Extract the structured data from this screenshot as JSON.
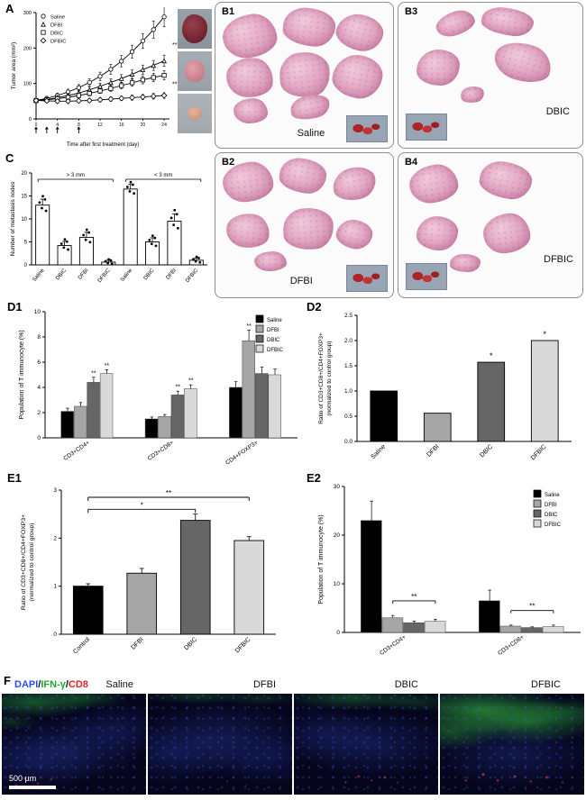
{
  "figure": {
    "panels": {
      "a": "A",
      "b1": "B1",
      "b2": "B2",
      "b3": "B3",
      "b4": "B4",
      "c": "C",
      "d1": "D1",
      "d2": "D2",
      "e1": "E1",
      "e2": "E2",
      "f": "F"
    }
  },
  "groups": [
    "Saline",
    "DFBI",
    "DBIC",
    "DFBIC"
  ],
  "group_colors": {
    "Saline": "#000000",
    "DFBI": "#a6a6a6",
    "DBIC": "#666666",
    "DFBIC": "#d9d9d9"
  },
  "panel_b": {
    "b1": {
      "caption": "Saline"
    },
    "b2": {
      "caption": "DFBI"
    },
    "b3": {
      "caption": "DBIC"
    },
    "b4": {
      "caption": "DFBIC"
    }
  },
  "panel_f": {
    "stain_parts": [
      {
        "text": "DAPI",
        "color": "#2b4bff"
      },
      {
        "text": "/",
        "color": "#111111"
      },
      {
        "text": "IFN-γ",
        "color": "#1ea832"
      },
      {
        "text": "/",
        "color": "#111111"
      },
      {
        "text": "CD8",
        "color": "#e02424"
      }
    ],
    "image_labels": [
      "Saline",
      "DFBI",
      "DBIC",
      "DFBIC"
    ],
    "scale_bar": "500 µm"
  },
  "chart_data": [
    {
      "id": "A",
      "type": "line",
      "ylabel": "Tumor area (mm²)",
      "xlabel": "Time after first treatment (day)",
      "xlim": [
        0,
        25
      ],
      "ylim": [
        0,
        300
      ],
      "xticks": [
        0,
        4,
        8,
        12,
        16,
        20,
        24
      ],
      "yticks": [
        0,
        100,
        200,
        300
      ],
      "x": [
        0,
        2,
        4,
        6,
        8,
        10,
        12,
        14,
        16,
        18,
        20,
        22,
        24
      ],
      "series": [
        {
          "name": "Saline",
          "marker": "circle",
          "values": [
            52,
            58,
            66,
            76,
            88,
            103,
            120,
            140,
            163,
            190,
            220,
            252,
            288
          ],
          "errors": [
            6,
            6,
            7,
            8,
            9,
            10,
            12,
            14,
            16,
            18,
            21,
            24,
            28
          ]
        },
        {
          "name": "DFBI",
          "marker": "triangle",
          "values": [
            52,
            55,
            60,
            66,
            73,
            82,
            92,
            103,
            114,
            126,
            139,
            151,
            164
          ],
          "errors": [
            5,
            5,
            6,
            6,
            7,
            8,
            9,
            10,
            11,
            12,
            13,
            14,
            16
          ]
        },
        {
          "name": "DBIC",
          "marker": "square",
          "values": [
            52,
            54,
            57,
            61,
            66,
            72,
            79,
            86,
            94,
            102,
            110,
            117,
            123
          ],
          "errors": [
            5,
            5,
            5,
            6,
            6,
            7,
            7,
            8,
            9,
            10,
            11,
            12,
            13
          ]
        },
        {
          "name": "DFBIC",
          "marker": "diamond",
          "values": [
            52,
            51,
            50,
            50,
            51,
            52,
            54,
            56,
            58,
            60,
            62,
            64,
            66
          ],
          "errors": [
            4,
            4,
            4,
            5,
            5,
            5,
            6,
            6,
            6,
            7,
            7,
            8,
            8
          ]
        }
      ],
      "treatment_days": [
        0,
        2,
        4,
        8
      ],
      "sig": [
        {
          "y": 208,
          "text": "**"
        },
        {
          "y": 98,
          "text": "**"
        }
      ],
      "legend_position": "top-left",
      "grid": false
    },
    {
      "id": "C",
      "type": "bar",
      "ylabel": "Number of metastasis nodes",
      "ylim": [
        0,
        20
      ],
      "yticks": [
        0,
        5,
        10,
        15,
        20
      ],
      "categories": [
        "Saline",
        "DBIC",
        "DFBI",
        "DFBIC",
        "Saline",
        "DBIC",
        "DFBI",
        "DFBIC"
      ],
      "values": [
        13,
        4.2,
        6,
        0.6,
        16.5,
        5,
        9.5,
        1
      ],
      "errors": [
        1.3,
        0.9,
        1.1,
        0.4,
        1,
        0.9,
        1.6,
        0.5
      ],
      "bar_fill": "#ffffff",
      "show_dots": true,
      "group_brackets": [
        {
          "from": 0,
          "to": 3,
          "label": "> 3 mm"
        },
        {
          "from": 4,
          "to": 7,
          "label": "< 3 mm"
        }
      ]
    },
    {
      "id": "D1",
      "type": "grouped-bar",
      "ylabel": "Population of T immunocyte (%)",
      "ylim": [
        0,
        10
      ],
      "yticks": [
        0,
        2,
        4,
        6,
        8,
        10
      ],
      "categories": [
        "CD3+CD4+",
        "CD3+CD8+",
        "CD4+FOXP3+"
      ],
      "series": [
        {
          "name": "Saline",
          "color": "#000000",
          "values": [
            2.1,
            1.5,
            4.0
          ],
          "errors": [
            0.25,
            0.15,
            0.45
          ]
        },
        {
          "name": "DFBI",
          "color": "#a6a6a6",
          "values": [
            2.5,
            1.7,
            7.7
          ],
          "errors": [
            0.3,
            0.15,
            0.85
          ]
        },
        {
          "name": "DBIC",
          "color": "#666666",
          "values": [
            4.4,
            3.4,
            5.1
          ],
          "errors": [
            0.4,
            0.3,
            0.5
          ]
        },
        {
          "name": "DFBIC",
          "color": "#d9d9d9",
          "values": [
            5.1,
            3.9,
            5.0
          ],
          "errors": [
            0.3,
            0.3,
            0.45
          ]
        }
      ],
      "sig": [
        {
          "cat": 0,
          "ser": 2,
          "text": "**"
        },
        {
          "cat": 0,
          "ser": 3,
          "text": "**"
        },
        {
          "cat": 1,
          "ser": 2,
          "text": "**"
        },
        {
          "cat": 1,
          "ser": 3,
          "text": "**"
        },
        {
          "cat": 2,
          "ser": 1,
          "text": "**"
        }
      ],
      "legend_position": "top-right"
    },
    {
      "id": "D2",
      "type": "bar",
      "ylabel": "Ratio of CD3+CD8+/CD4+FOXP3+\n(normalized to control group)",
      "ylim": [
        0,
        2.5
      ],
      "yticks": [
        0,
        0.5,
        1,
        1.5,
        2,
        2.5
      ],
      "ytick_decimals": 1,
      "categories": [
        "Saline",
        "DFBI",
        "DBIC",
        "DFBIC"
      ],
      "values": [
        1.0,
        0.56,
        1.57,
        2.0
      ],
      "colors": [
        "#000000",
        "#a6a6a6",
        "#666666",
        "#d9d9d9"
      ],
      "sig": [
        "",
        "",
        "*",
        "*"
      ]
    },
    {
      "id": "E1",
      "type": "bar",
      "ylabel": "Ratio of CD3+CD8+/CD4+FOXP3+\n(normalized to control group)",
      "ylim": [
        0,
        3
      ],
      "yticks": [
        0,
        1,
        2,
        3
      ],
      "categories": [
        "Control",
        "DFBI",
        "DBIC",
        "DFBIC"
      ],
      "values": [
        1.0,
        1.27,
        2.37,
        1.95
      ],
      "errors": [
        0.05,
        0.1,
        0.13,
        0.08
      ],
      "colors": [
        "#000000",
        "#a6a6a6",
        "#666666",
        "#d9d9d9"
      ],
      "brackets": [
        {
          "from": 0,
          "to": 3,
          "h": 2.85,
          "text": "**"
        },
        {
          "from": 0,
          "to": 2,
          "h": 2.6,
          "text": "*"
        }
      ]
    },
    {
      "id": "E2",
      "type": "grouped-bar",
      "ylabel": "Population of T immunocyte (%)",
      "ylim": [
        0,
        30
      ],
      "yticks": [
        0,
        10,
        20,
        30
      ],
      "categories": [
        "CD3+CD4+",
        "CD3+CD8+"
      ],
      "series": [
        {
          "name": "Saline",
          "color": "#000000",
          "values": [
            23,
            6.5
          ],
          "errors": [
            4,
            2.2
          ]
        },
        {
          "name": "DFBI",
          "color": "#a6a6a6",
          "values": [
            3,
            1.3
          ],
          "errors": [
            0.5,
            0.2
          ]
        },
        {
          "name": "DBIC",
          "color": "#666666",
          "values": [
            2,
            1.0
          ],
          "errors": [
            0.35,
            0.15
          ]
        },
        {
          "name": "DFBIC",
          "color": "#d9d9d9",
          "values": [
            2.3,
            1.2
          ],
          "errors": [
            0.4,
            0.3
          ]
        }
      ],
      "brackets": [
        {
          "cat": 0,
          "s1": 1,
          "s2": 3,
          "h": 6.5,
          "text": "**"
        },
        {
          "cat": 1,
          "s1": 1,
          "s2": 3,
          "h": 4.5,
          "text": "**"
        }
      ],
      "legend_position": "top-right"
    }
  ]
}
